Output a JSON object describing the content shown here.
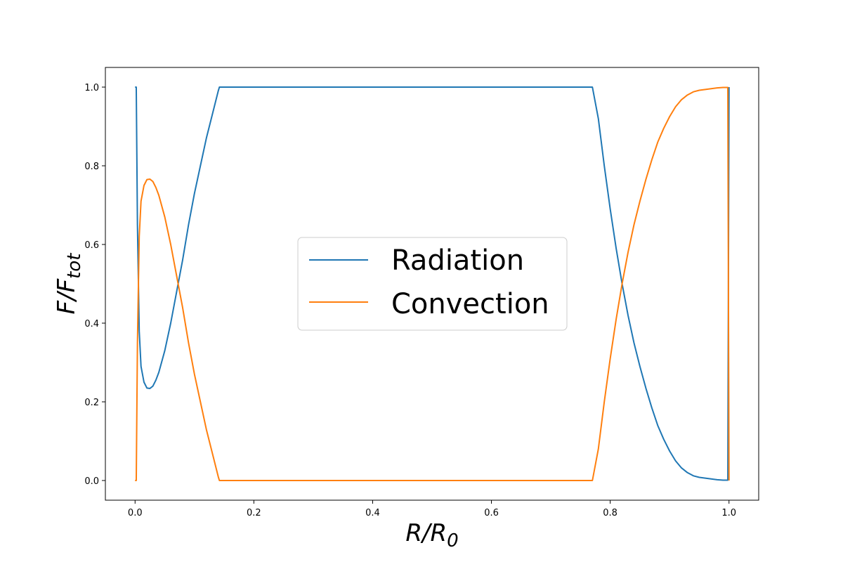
{
  "chart_data": {
    "type": "line",
    "title": "",
    "xlabel": {
      "main": "R/R",
      "sub": "0"
    },
    "ylabel": {
      "main": "F/F",
      "sub": "tot"
    },
    "xlim": [
      -0.05,
      1.05
    ],
    "ylim": [
      -0.05,
      1.05
    ],
    "xticks": [
      0.0,
      0.2,
      0.4,
      0.6,
      0.8,
      1.0
    ],
    "xtick_labels": [
      "0.0",
      "0.2",
      "0.4",
      "0.6",
      "0.8",
      "1.0"
    ],
    "yticks": [
      0.0,
      0.2,
      0.4,
      0.6,
      0.8,
      1.0
    ],
    "ytick_labels": [
      "0.0",
      "0.2",
      "0.4",
      "0.6",
      "0.8",
      "1.0"
    ],
    "grid": false,
    "legend_position": "center",
    "x": [
      0.0,
      0.002,
      0.004,
      0.007,
      0.01,
      0.015,
      0.02,
      0.025,
      0.03,
      0.035,
      0.04,
      0.05,
      0.06,
      0.07,
      0.08,
      0.09,
      0.1,
      0.11,
      0.12,
      0.13,
      0.14,
      0.142,
      0.2,
      0.3,
      0.4,
      0.5,
      0.6,
      0.7,
      0.768,
      0.77,
      0.78,
      0.79,
      0.8,
      0.81,
      0.82,
      0.83,
      0.84,
      0.85,
      0.86,
      0.87,
      0.88,
      0.89,
      0.9,
      0.91,
      0.92,
      0.93,
      0.94,
      0.95,
      0.96,
      0.97,
      0.98,
      0.99,
      0.995,
      0.998,
      0.999,
      1.0
    ],
    "series": [
      {
        "name": "Radiation",
        "color": "#1f77b4",
        "values": [
          1.0,
          1.0,
          0.65,
          0.38,
          0.29,
          0.25,
          0.235,
          0.234,
          0.24,
          0.255,
          0.275,
          0.33,
          0.4,
          0.48,
          0.56,
          0.65,
          0.73,
          0.8,
          0.87,
          0.93,
          0.99,
          1.0,
          1.0,
          1.0,
          1.0,
          1.0,
          1.0,
          1.0,
          1.0,
          1.0,
          0.92,
          0.8,
          0.69,
          0.59,
          0.5,
          0.42,
          0.35,
          0.29,
          0.235,
          0.185,
          0.14,
          0.105,
          0.075,
          0.05,
          0.032,
          0.02,
          0.012,
          0.008,
          0.006,
          0.004,
          0.002,
          0.001,
          0.001,
          0.001,
          0.5,
          1.0
        ]
      },
      {
        "name": "Convection",
        "color": "#ff7f0e",
        "values": [
          0.0,
          0.0,
          0.35,
          0.62,
          0.71,
          0.75,
          0.765,
          0.766,
          0.76,
          0.745,
          0.725,
          0.67,
          0.6,
          0.52,
          0.44,
          0.35,
          0.27,
          0.2,
          0.13,
          0.07,
          0.01,
          0.0,
          0.0,
          0.0,
          0.0,
          0.0,
          0.0,
          0.0,
          0.0,
          0.0,
          0.08,
          0.2,
          0.31,
          0.41,
          0.5,
          0.58,
          0.65,
          0.71,
          0.765,
          0.815,
          0.86,
          0.895,
          0.925,
          0.95,
          0.968,
          0.98,
          0.988,
          0.992,
          0.994,
          0.996,
          0.998,
          0.999,
          0.999,
          0.999,
          0.5,
          0.0
        ]
      }
    ]
  }
}
